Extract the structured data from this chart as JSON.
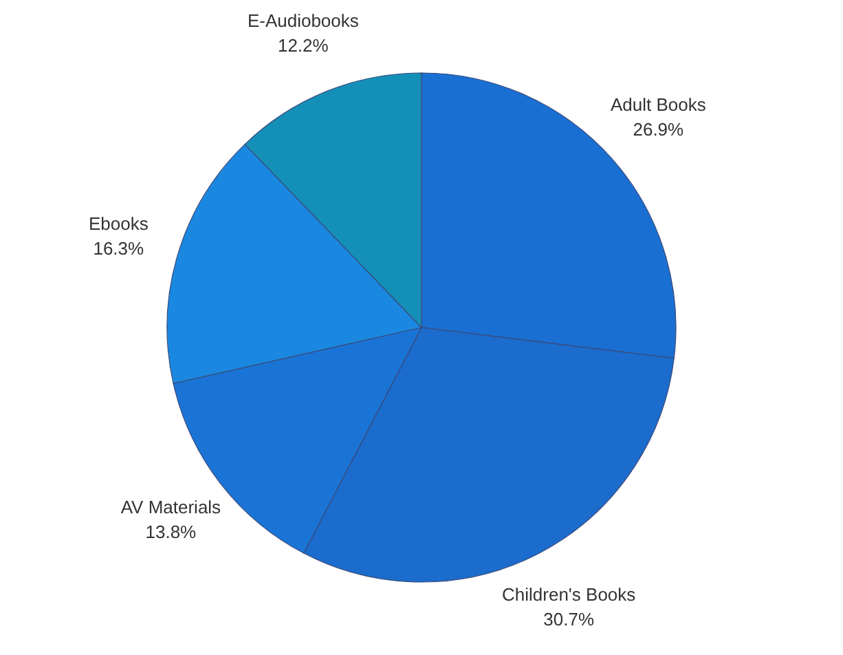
{
  "chart_data": {
    "type": "pie",
    "categories": [
      "Adult Books",
      "Children's Books",
      "AV Materials",
      "Ebooks",
      "E-Audiobooks"
    ],
    "values": [
      26.9,
      30.7,
      13.8,
      16.3,
      12.2
    ],
    "value_labels": [
      "26.9%",
      "30.7%",
      "13.8%",
      "16.3%",
      "12.2%"
    ],
    "colors": [
      "#1a6fd2",
      "#1b6ccc",
      "#1a74d6",
      "#1a88e0",
      "#1490b8"
    ],
    "legend": false
  }
}
